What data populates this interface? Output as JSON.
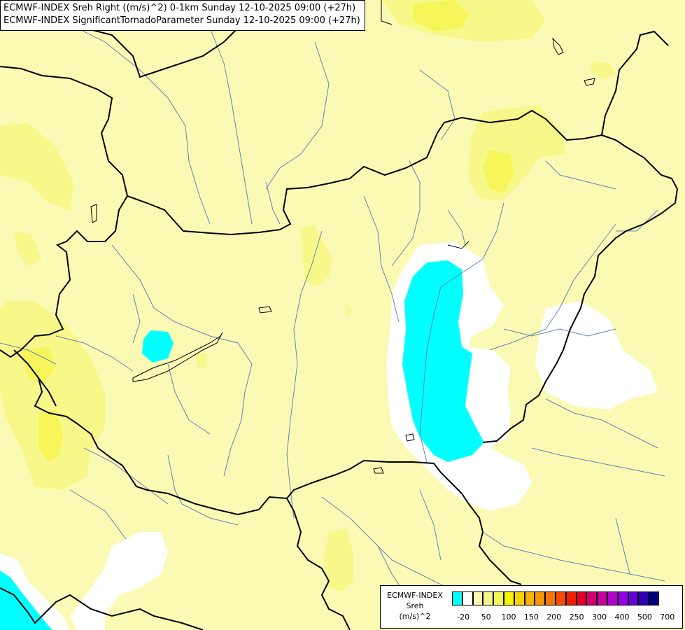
{
  "title": {
    "line1": "ECMWF-INDEX Sreh Right ((m/s)^2) 0-1km Sunday 12-10-2025 09:00 (+27h)",
    "line2": "ECMWF-INDEX SignificantTornadoParameter Sunday 12-10-2025 09:00 (+27h)"
  },
  "legend": {
    "line1": "ECMWF-INDEX",
    "line2": "Sreh",
    "line3": "(m/s)^2",
    "colors": [
      "#00ffff",
      "#ffffff",
      "#fafab4",
      "#f8f88a",
      "#f6f65a",
      "#f6f600",
      "#f6d200",
      "#f6b400",
      "#f69600",
      "#f67800",
      "#f64b00",
      "#f01e00",
      "#e60028",
      "#d2006e",
      "#c800a0",
      "#b400d2",
      "#9600e6",
      "#6400dc",
      "#3200b4",
      "#000080"
    ],
    "tick_labels": [
      "-20",
      "50",
      "100",
      "150",
      "200",
      "250",
      "300",
      "400",
      "500",
      "700"
    ]
  },
  "colors": {
    "background": "#fafab4",
    "yellow_light": "#f8f88a",
    "yellow": "#f6f65a",
    "white": "#ffffff",
    "cyan": "#00ffff",
    "border": "#000000",
    "river": "#6482b4"
  }
}
